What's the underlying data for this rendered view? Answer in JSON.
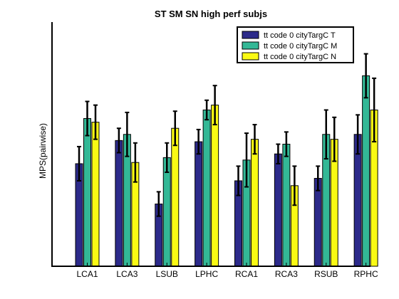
{
  "chart_data": {
    "type": "bar",
    "title": "ST SM SN high perf subjs",
    "xlabel": "",
    "ylabel": "MPS(pairwise)",
    "ylim": [
      0,
      1
    ],
    "categories": [
      "LCA1",
      "LCA3",
      "LSUB",
      "LPHC",
      "RCA1",
      "RCA3",
      "RSUB",
      "RPHC"
    ],
    "series": [
      {
        "name": "tt code 0 cityTargC T",
        "color": "#2c2a8a",
        "values": [
          0.42,
          0.515,
          0.255,
          0.51,
          0.35,
          0.46,
          0.36,
          0.54
        ],
        "errors": [
          0.07,
          0.05,
          0.05,
          0.05,
          0.06,
          0.04,
          0.05,
          0.08
        ]
      },
      {
        "name": "tt code 0 cityTargC M",
        "color": "#33b896",
        "values": [
          0.605,
          0.54,
          0.445,
          0.64,
          0.435,
          0.5,
          0.54,
          0.78
        ],
        "errors": [
          0.07,
          0.09,
          0.06,
          0.04,
          0.11,
          0.05,
          0.1,
          0.09
        ]
      },
      {
        "name": "tt code 0 cityTargC N",
        "color": "#fafa14",
        "values": [
          0.59,
          0.425,
          0.565,
          0.66,
          0.52,
          0.33,
          0.52,
          0.64
        ],
        "errors": [
          0.07,
          0.08,
          0.07,
          0.08,
          0.06,
          0.08,
          0.09,
          0.13
        ]
      }
    ],
    "grid": false,
    "legend": "top-right",
    "colors": {
      "axis": "#000000",
      "background": "#ffffff"
    }
  }
}
